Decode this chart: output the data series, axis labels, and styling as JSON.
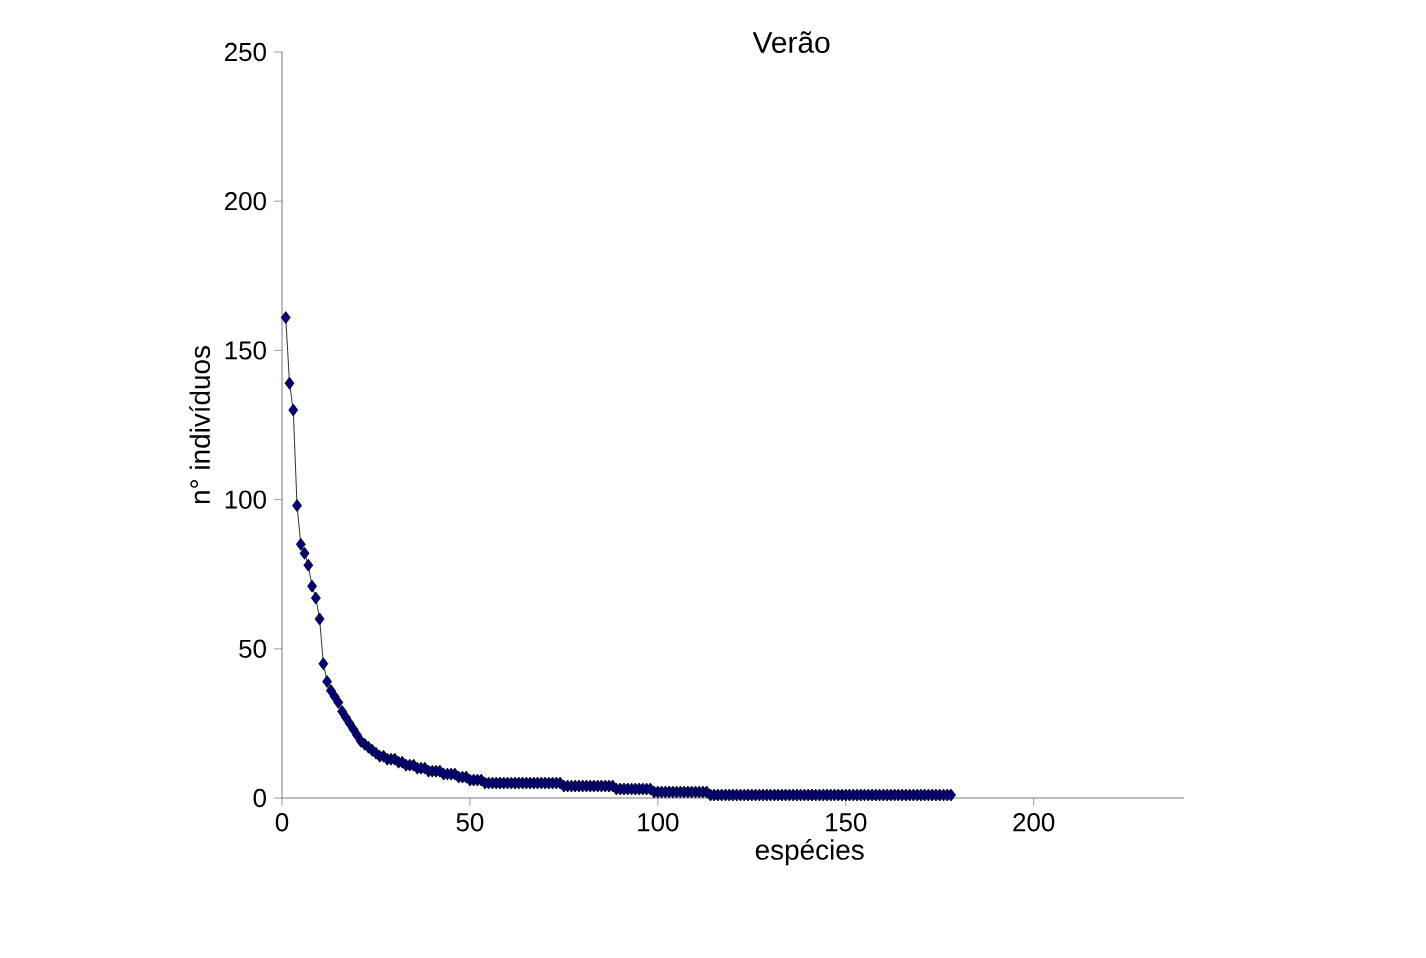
{
  "chart_data": {
    "type": "line",
    "title": "Verão",
    "xlabel": "espécies",
    "ylabel": "n° indivíduos",
    "xlim": [
      0,
      240
    ],
    "ylim": [
      0,
      250
    ],
    "xticks": [
      0,
      50,
      100,
      150,
      200
    ],
    "yticks": [
      0,
      50,
      100,
      150,
      200,
      250
    ],
    "marker": "diamond",
    "line_style": "solid",
    "color": "#000080",
    "x": [
      1,
      2,
      3,
      4,
      5,
      6,
      7,
      8,
      9,
      10,
      11,
      12,
      13,
      14,
      15,
      16,
      17,
      18,
      19,
      20,
      21,
      22,
      23,
      24,
      25,
      26,
      27,
      28,
      29,
      30,
      31,
      32,
      33,
      34,
      35,
      36,
      37,
      38,
      39,
      40,
      41,
      42,
      43,
      44,
      45,
      46,
      47,
      48,
      49,
      50,
      51,
      52,
      53,
      54,
      55,
      56,
      57,
      58,
      59,
      60,
      61,
      62,
      63,
      64,
      65,
      66,
      67,
      68,
      69,
      70,
      71,
      72,
      73,
      74,
      75,
      76,
      77,
      78,
      79,
      80,
      81,
      82,
      83,
      84,
      85,
      86,
      87,
      88,
      89,
      90,
      91,
      92,
      93,
      94,
      95,
      96,
      97,
      98,
      99,
      100,
      101,
      102,
      103,
      104,
      105,
      106,
      107,
      108,
      109,
      110,
      111,
      112,
      113,
      114,
      115,
      116,
      117,
      118,
      119,
      120,
      121,
      122,
      123,
      124,
      125,
      126,
      127,
      128,
      129,
      130,
      131,
      132,
      133,
      134,
      135,
      136,
      137,
      138,
      139,
      140,
      141,
      142,
      143,
      144,
      145,
      146,
      147,
      148,
      149,
      150,
      151,
      152,
      153,
      154,
      155,
      156,
      157,
      158,
      159,
      160,
      161,
      162,
      163,
      164,
      165,
      166,
      167,
      168,
      169,
      170,
      171,
      172,
      173,
      174,
      175,
      176,
      177,
      178
    ],
    "values": [
      161,
      139,
      130,
      98,
      85,
      82,
      78,
      71,
      67,
      60,
      45,
      39,
      36,
      34,
      32,
      29,
      27,
      25,
      23,
      21,
      19,
      18,
      17,
      16,
      15,
      14,
      14,
      13,
      13,
      13,
      12,
      12,
      11,
      11,
      11,
      10,
      10,
      10,
      9,
      9,
      9,
      9,
      8,
      8,
      8,
      8,
      7,
      7,
      7,
      6,
      6,
      6,
      6,
      5,
      5,
      5,
      5,
      5,
      5,
      5,
      5,
      5,
      5,
      5,
      5,
      5,
      5,
      5,
      5,
      5,
      5,
      5,
      5,
      5,
      4,
      4,
      4,
      4,
      4,
      4,
      4,
      4,
      4,
      4,
      4,
      4,
      4,
      4,
      3,
      3,
      3,
      3,
      3,
      3,
      3,
      3,
      3,
      3,
      2,
      2,
      2,
      2,
      2,
      2,
      2,
      2,
      2,
      2,
      2,
      2,
      2,
      2,
      2,
      1,
      1,
      1,
      1,
      1,
      1,
      1,
      1,
      1,
      1,
      1,
      1,
      1,
      1,
      1,
      1,
      1,
      1,
      1,
      1,
      1,
      1,
      1,
      1,
      1,
      1,
      1,
      1,
      1,
      1,
      1,
      1,
      1,
      1,
      1,
      1,
      1,
      1,
      1,
      1,
      1,
      1,
      1,
      1,
      1,
      1,
      1,
      1,
      1,
      1,
      1,
      1,
      1,
      1,
      1,
      1,
      1,
      1,
      1,
      1,
      1,
      1,
      1,
      1,
      1
    ]
  }
}
